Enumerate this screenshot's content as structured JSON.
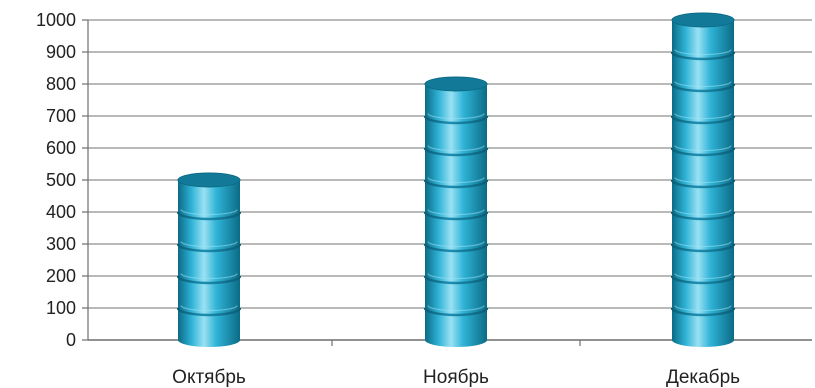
{
  "chart_data": {
    "type": "bar",
    "style": "stacked-cylinder",
    "categories": [
      "Октябрь",
      "Ноябрь",
      "Декабрь"
    ],
    "values": [
      500,
      800,
      1000
    ],
    "ylim": [
      0,
      1000
    ],
    "yticks": [
      0,
      100,
      200,
      300,
      400,
      500,
      600,
      700,
      800,
      900,
      1000
    ],
    "segment_value": 100,
    "grid": true,
    "legend": "none",
    "colors": {
      "gridline": "#8f8f8f",
      "axis": "#6f6f6f",
      "cylinder_mid": "#2fb3d6",
      "cylinder_light": "#9ae1f3",
      "cylinder_dark": "#0b6b86",
      "cylinder_top": "#127a98"
    }
  }
}
